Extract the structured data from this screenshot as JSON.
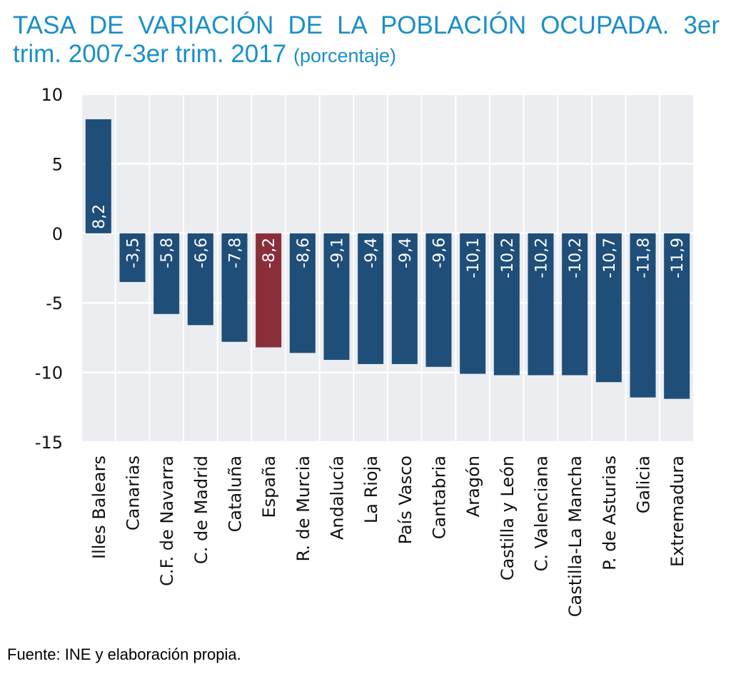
{
  "title": "TASA DE VARIACIÓN DE LA POBLACIÓN OCUPADA. 3er trim. 2007-3er trim. 2017",
  "title_unit": "(porcentaje)",
  "source": "Fuente: INE y elaboración propia.",
  "colors": {
    "title": "#1a8fc9",
    "bar": "#1f4e79",
    "highlight": "#8b2e3c",
    "plot_bg": "#ebedf0",
    "grid": "#ffffff"
  },
  "chart_data": {
    "type": "bar",
    "orientation": "vertical",
    "categories": [
      "Illes Balears",
      "Canarias",
      "C.F. de Navarra",
      "C. de Madrid",
      "Cataluña",
      "España",
      "R. de Murcia",
      "Andalucía",
      "La Rioja",
      "País Vasco",
      "Cantabria",
      "Aragón",
      "Castilla y León",
      "C. Valenciana",
      "Castilla-La Mancha",
      "P. de Asturias",
      "Galicia",
      "Extremadura"
    ],
    "values": [
      8.2,
      -3.5,
      -5.8,
      -6.6,
      -7.8,
      -8.2,
      -8.6,
      -9.1,
      -9.4,
      -9.4,
      -9.6,
      -10.1,
      -10.2,
      -10.2,
      -10.2,
      -10.7,
      -11.8,
      -11.9
    ],
    "data_labels": [
      "8,2",
      "-3,5",
      "-5,8",
      "-6,6",
      "-7,8",
      "-8,2",
      "-8,6",
      "-9,1",
      "-9,4",
      "-9,4",
      "-9,6",
      "-10,1",
      "-10,2",
      "-10,2",
      "-10,2",
      "-10,7",
      "-11,8",
      "-11,9"
    ],
    "highlight_category": "España",
    "ylim": [
      -15,
      10
    ],
    "yticks": [
      10,
      5,
      0,
      -5,
      -10,
      -15
    ],
    "ytick_labels": [
      "10",
      "5",
      "0",
      "-5",
      "-10",
      "-15"
    ],
    "grid": true,
    "legend": "none"
  }
}
